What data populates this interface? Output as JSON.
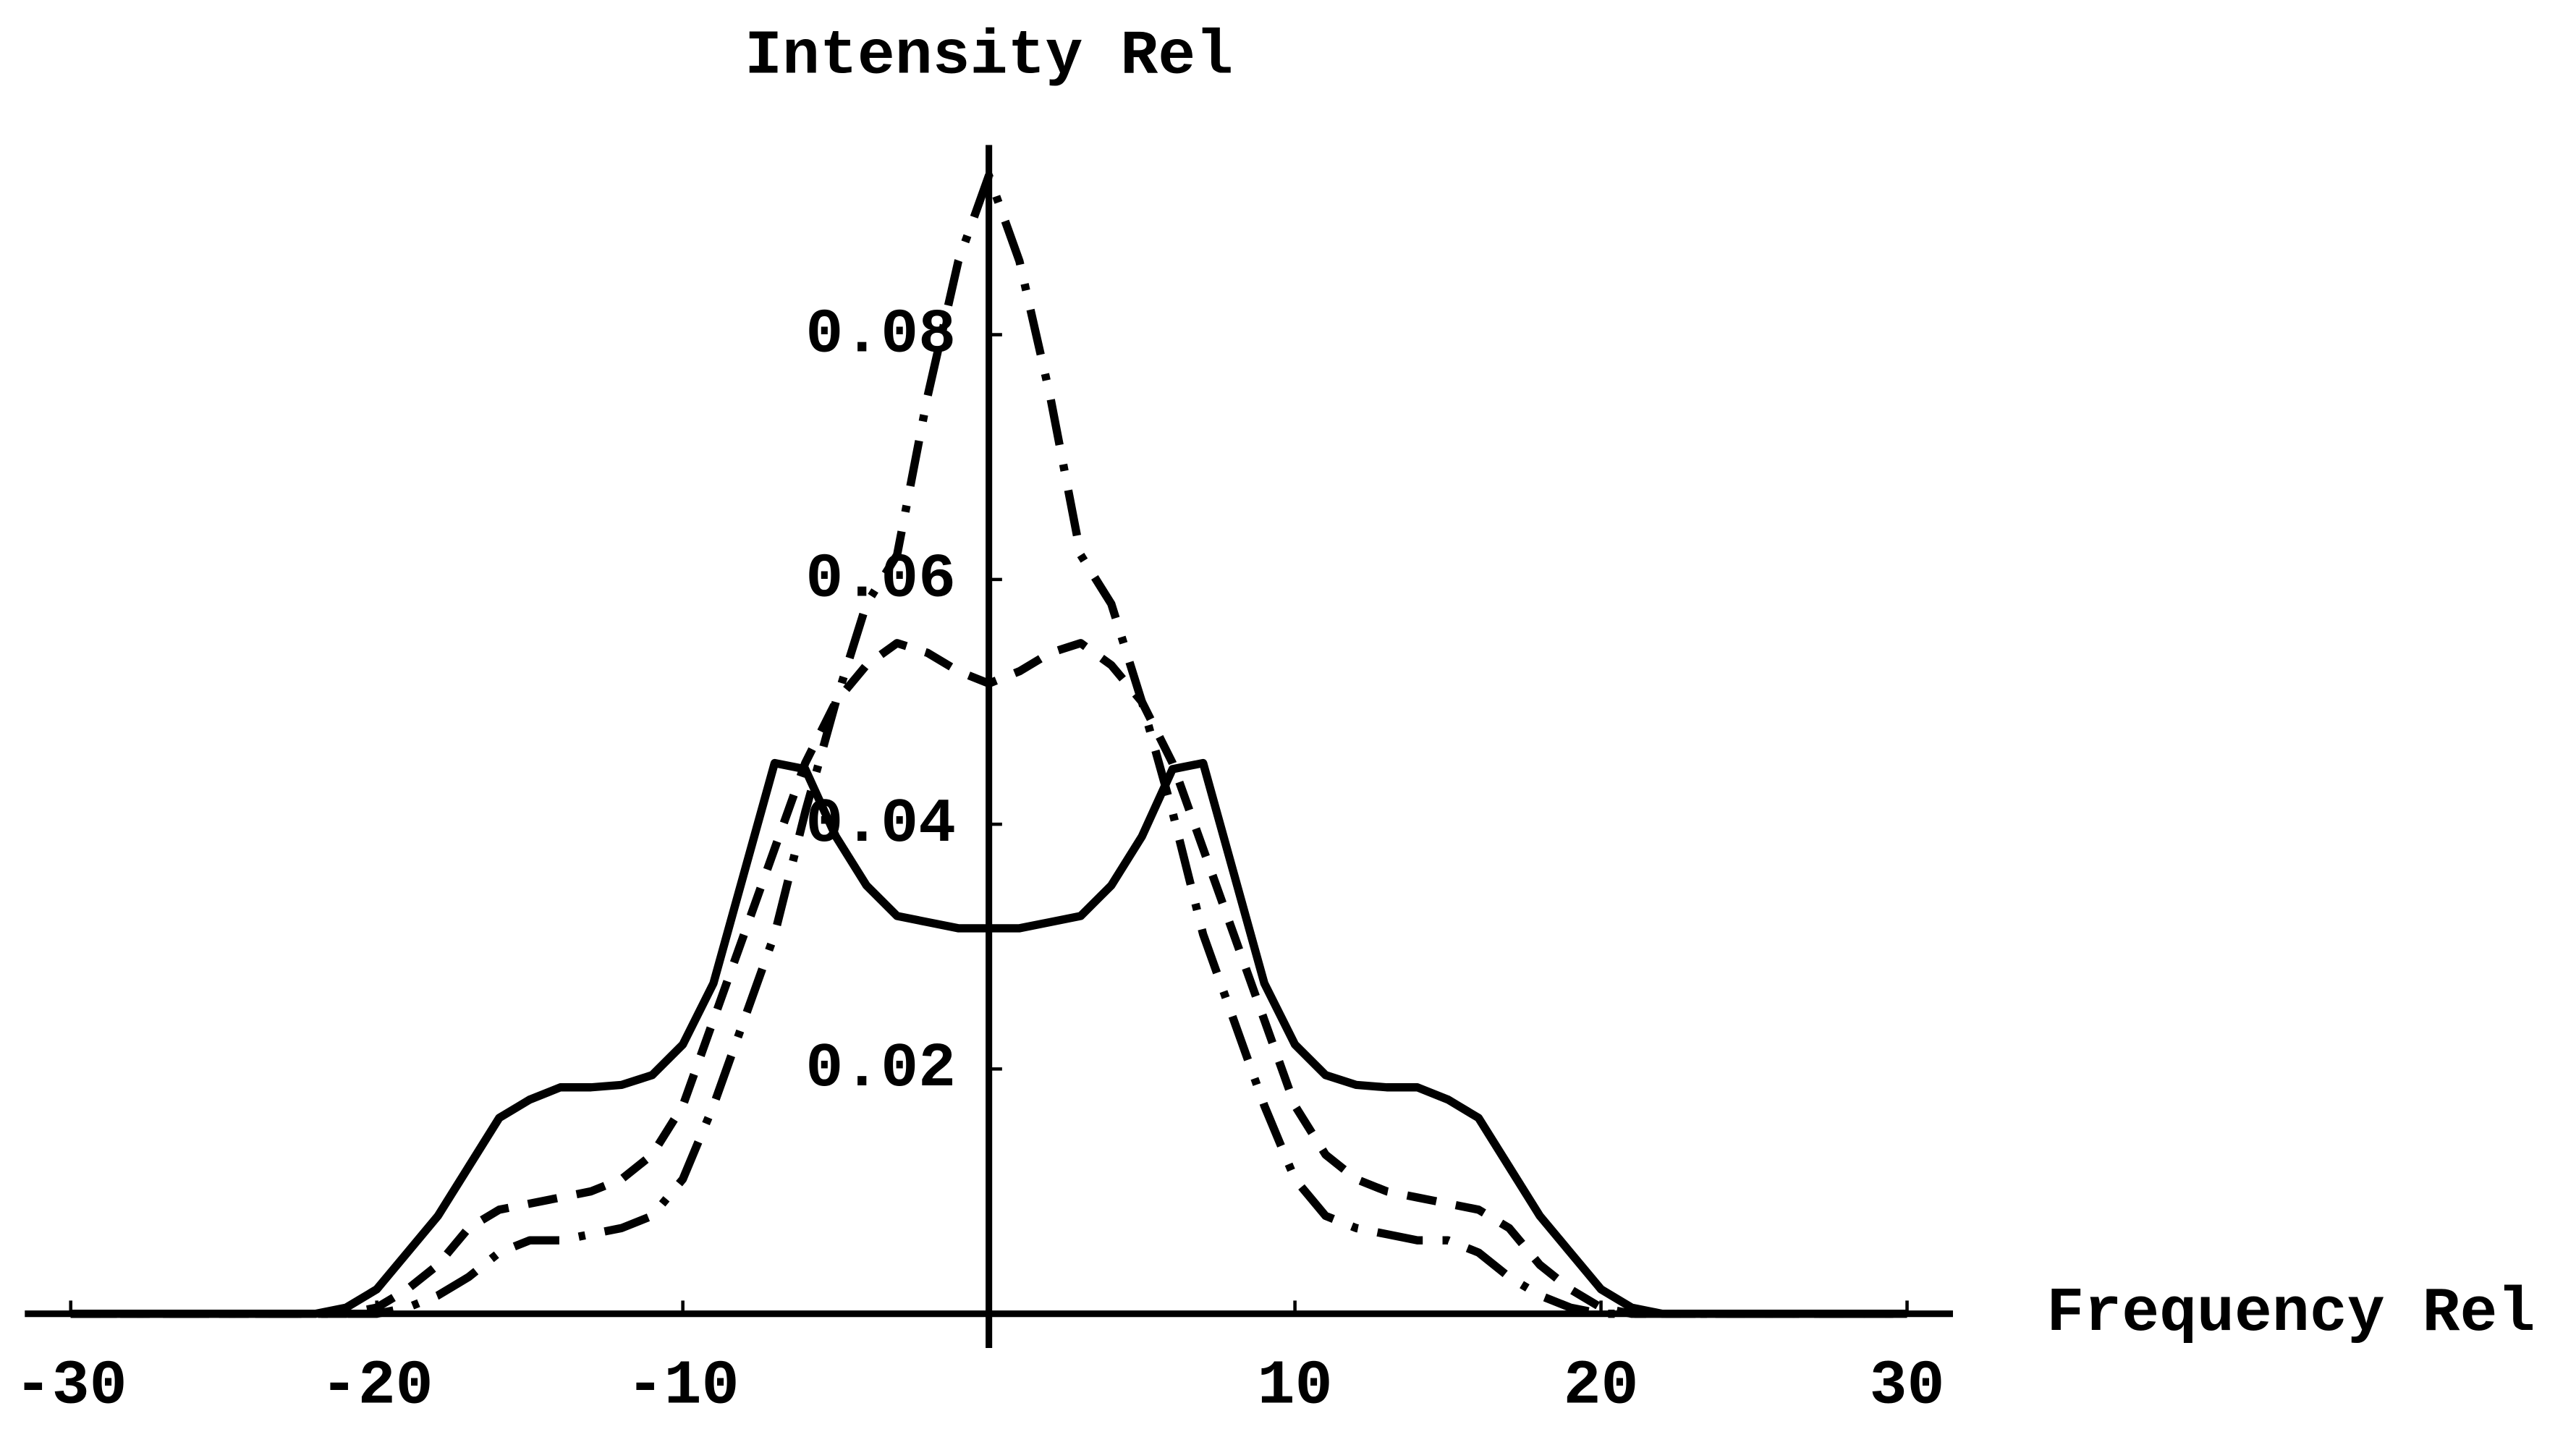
{
  "chart_data": {
    "type": "line",
    "x_label": "Frequency Rel",
    "y_label": "Intensity Rel",
    "x": [
      -30,
      -29,
      -28,
      -27,
      -26,
      -25,
      -24,
      -23,
      -22,
      -21,
      -20,
      -19,
      -18,
      -17,
      -16,
      -15,
      -14,
      -13,
      -12,
      -11,
      -10,
      -9,
      -8,
      -7,
      -6,
      -5,
      -4,
      -3,
      -2,
      -1,
      0,
      1,
      2,
      3,
      4,
      5,
      6,
      7,
      8,
      9,
      10,
      11,
      12,
      13,
      14,
      15,
      16,
      17,
      18,
      19,
      20,
      21,
      22,
      23,
      24,
      25,
      26,
      27,
      28,
      29,
      30
    ],
    "series": [
      {
        "style": "solid",
        "color": "#000000",
        "values": [
          0,
          0,
          0,
          0,
          0,
          0,
          0,
          0,
          0,
          0.0005,
          0.002,
          0.005,
          0.008,
          0.012,
          0.016,
          0.0175,
          0.0185,
          0.0185,
          0.0187,
          0.0195,
          0.022,
          0.027,
          0.036,
          0.045,
          0.0445,
          0.039,
          0.035,
          0.0325,
          0.032,
          0.0315,
          0.0315,
          0.0315,
          0.032,
          0.0325,
          0.035,
          0.039,
          0.0445,
          0.045,
          0.036,
          0.027,
          0.022,
          0.0195,
          0.0187,
          0.0185,
          0.0185,
          0.0175,
          0.016,
          0.012,
          0.008,
          0.005,
          0.002,
          0.0005,
          0,
          0,
          0,
          0,
          0,
          0,
          0,
          0,
          0
        ]
      },
      {
        "style": "dashed",
        "color": "#000000",
        "values": [
          0,
          0,
          0,
          0,
          0,
          0,
          0,
          0,
          0,
          0,
          0.0005,
          0.002,
          0.004,
          0.007,
          0.0085,
          0.009,
          0.0095,
          0.01,
          0.011,
          0.013,
          0.017,
          0.024,
          0.031,
          0.038,
          0.045,
          0.05,
          0.053,
          0.0548,
          0.054,
          0.0525,
          0.0515,
          0.0525,
          0.054,
          0.0548,
          0.053,
          0.05,
          0.045,
          0.038,
          0.031,
          0.024,
          0.017,
          0.013,
          0.011,
          0.01,
          0.0095,
          0.009,
          0.0085,
          0.007,
          0.004,
          0.002,
          0.0005,
          0,
          0,
          0,
          0,
          0,
          0,
          0,
          0,
          0,
          0
        ]
      },
      {
        "style": "dashdot",
        "color": "#000000",
        "values": [
          0,
          0,
          0,
          0,
          0,
          0,
          0,
          0,
          0,
          0,
          0,
          0.0005,
          0.0015,
          0.003,
          0.005,
          0.006,
          0.006,
          0.0065,
          0.007,
          0.008,
          0.011,
          0.017,
          0.024,
          0.031,
          0.041,
          0.05,
          0.058,
          0.062,
          0.075,
          0.086,
          0.093,
          0.086,
          0.075,
          0.062,
          0.058,
          0.05,
          0.041,
          0.031,
          0.024,
          0.017,
          0.011,
          0.008,
          0.007,
          0.0065,
          0.006,
          0.006,
          0.005,
          0.003,
          0.0015,
          0.0005,
          0,
          0,
          0,
          0,
          0,
          0,
          0,
          0,
          0,
          0,
          0
        ]
      }
    ],
    "xlim": [
      -31.5,
      31.5
    ],
    "ylim": [
      -0.0028,
      0.0955
    ],
    "xticks": [
      -30,
      -20,
      -10,
      10,
      20,
      30
    ],
    "yticks": [
      0.02,
      0.04,
      0.06,
      0.08
    ]
  }
}
